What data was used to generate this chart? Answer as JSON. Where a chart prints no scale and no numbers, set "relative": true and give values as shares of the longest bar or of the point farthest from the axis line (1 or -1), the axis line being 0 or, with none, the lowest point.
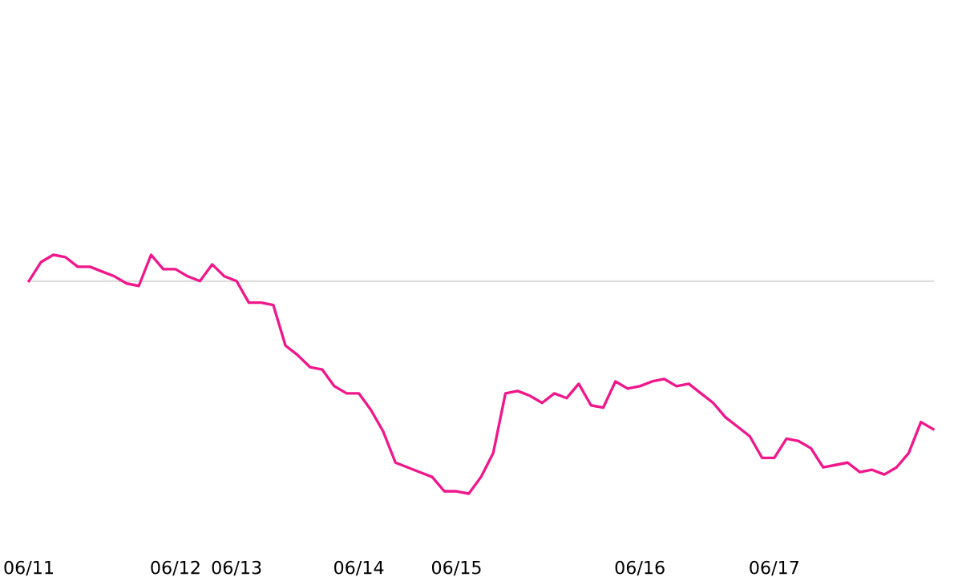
{
  "chart_data": {
    "type": "line",
    "relative": true,
    "categories": [
      "06/11",
      null,
      null,
      null,
      null,
      null,
      null,
      null,
      null,
      null,
      null,
      null,
      "06/12",
      null,
      null,
      null,
      null,
      "06/13",
      null,
      null,
      null,
      null,
      null,
      null,
      null,
      null,
      null,
      "06/14",
      null,
      null,
      null,
      null,
      null,
      null,
      null,
      "06/15",
      null,
      null,
      null,
      null,
      null,
      null,
      null,
      null,
      null,
      null,
      null,
      null,
      null,
      null,
      "06/16",
      null,
      null,
      null,
      null,
      null,
      null,
      null,
      null,
      null,
      null,
      "06/17",
      null,
      null,
      null,
      null,
      null,
      null,
      null,
      null,
      null,
      null,
      null,
      null,
      null
    ],
    "series": [
      {
        "color": "#f0168c",
        "values": [
          0.89,
          0.97,
          1.0,
          0.99,
          0.95,
          0.95,
          0.93,
          0.91,
          0.88,
          0.87,
          1.0,
          0.94,
          0.94,
          0.91,
          0.89,
          0.96,
          0.91,
          0.89,
          0.8,
          0.8,
          0.79,
          0.62,
          0.58,
          0.53,
          0.52,
          0.45,
          0.42,
          0.42,
          0.35,
          0.26,
          0.13,
          0.11,
          0.09,
          0.07,
          0.01,
          0.01,
          0.0,
          0.07,
          0.17,
          0.42,
          0.43,
          0.41,
          0.38,
          0.42,
          0.4,
          0.46,
          0.37,
          0.36,
          0.47,
          0.44,
          0.45,
          0.47,
          0.48,
          0.45,
          0.46,
          0.42,
          0.38,
          0.32,
          0.28,
          0.24,
          0.15,
          0.15,
          0.23,
          0.22,
          0.19,
          0.11,
          0.12,
          0.13,
          0.09,
          0.1,
          0.08,
          0.11,
          0.17,
          0.3,
          0.27
        ]
      }
    ],
    "ref_lines": [
      {
        "axis": "y",
        "value": 0.89,
        "color": "#dddddd"
      }
    ],
    "grid": false,
    "legend": false,
    "marker": "none",
    "line_style": "solid"
  }
}
